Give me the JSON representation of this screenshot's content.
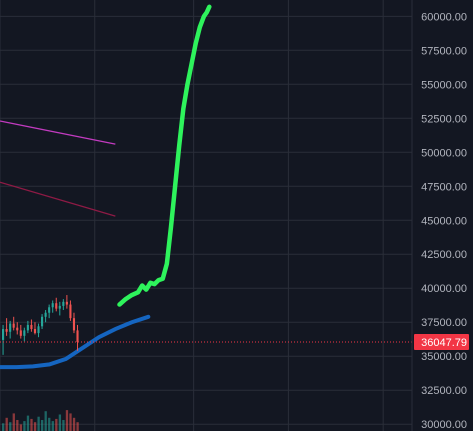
{
  "chart_data": {
    "type": "line",
    "ylim": [
      29500,
      61200
    ],
    "y_ticks": [
      "60000.00",
      "57500.00",
      "55000.00",
      "52500.00",
      "50000.00",
      "47500.00",
      "45000.00",
      "42500.00",
      "40000.00",
      "37500.00",
      "35000.00",
      "32500.00",
      "30000.00"
    ],
    "y_tick_values": [
      60000,
      57500,
      55000,
      52500,
      50000,
      47500,
      45000,
      42500,
      40000,
      37500,
      35000,
      32500,
      30000
    ],
    "current_price": {
      "label": "36047.79",
      "value": 36047.79
    },
    "colors": {
      "background": "#131722",
      "grid": "#2a2e39",
      "axis_text": "#b2b5be",
      "projection": "#2ef35c",
      "moving_average": "#1565c0",
      "trend_upper": "#c23bc0",
      "trend_lower": "#8e1a45",
      "price_line": "#f23645",
      "candle_up": "#26a69a",
      "candle_down": "#ef5350"
    },
    "series": [
      {
        "role": "projection",
        "x": [
          0.29,
          0.305,
          0.32,
          0.335,
          0.345,
          0.355,
          0.365,
          0.375,
          0.385,
          0.395,
          0.405,
          0.415,
          0.425,
          0.435,
          0.445,
          0.455,
          0.465,
          0.475,
          0.485,
          0.495,
          0.502,
          0.508
        ],
        "y": [
          38800,
          39200,
          39500,
          39700,
          40200,
          39900,
          40400,
          40300,
          40600,
          40700,
          41800,
          44500,
          47500,
          50500,
          53200,
          55000,
          56500,
          58000,
          59200,
          60000,
          60300,
          60700
        ]
      },
      {
        "role": "moving_average",
        "x": [
          0,
          0.04,
          0.08,
          0.12,
          0.16,
          0.2,
          0.24,
          0.28,
          0.32,
          0.36
        ],
        "y": [
          34200,
          34200,
          34250,
          34400,
          34800,
          35600,
          36400,
          37000,
          37500,
          37900
        ]
      },
      {
        "role": "trend_upper",
        "x": [
          0,
          0.28
        ],
        "y": [
          52300,
          50600
        ]
      },
      {
        "role": "trend_lower",
        "x": [
          0,
          0.28
        ],
        "y": [
          47800,
          45300
        ]
      }
    ],
    "candles": [
      {
        "o": 36200,
        "h": 37300,
        "l": 35100,
        "c": 37000
      },
      {
        "o": 37000,
        "h": 37800,
        "l": 36500,
        "c": 36800
      },
      {
        "o": 36800,
        "h": 37600,
        "l": 36300,
        "c": 37400
      },
      {
        "o": 37400,
        "h": 37900,
        "l": 36900,
        "c": 37100
      },
      {
        "o": 37100,
        "h": 37500,
        "l": 36600,
        "c": 36900
      },
      {
        "o": 36900,
        "h": 37300,
        "l": 36300,
        "c": 36500
      },
      {
        "o": 36500,
        "h": 37100,
        "l": 36100,
        "c": 36900
      },
      {
        "o": 36900,
        "h": 37600,
        "l": 36700,
        "c": 37300
      },
      {
        "o": 37300,
        "h": 37700,
        "l": 36800,
        "c": 37000
      },
      {
        "o": 37000,
        "h": 37500,
        "l": 36600,
        "c": 36700
      },
      {
        "o": 36700,
        "h": 37400,
        "l": 36400,
        "c": 37200
      },
      {
        "o": 37200,
        "h": 38100,
        "l": 37000,
        "c": 37900
      },
      {
        "o": 37900,
        "h": 38400,
        "l": 37500,
        "c": 38200
      },
      {
        "o": 38200,
        "h": 38800,
        "l": 37800,
        "c": 38600
      },
      {
        "o": 38600,
        "h": 39100,
        "l": 38200,
        "c": 38900
      },
      {
        "o": 38900,
        "h": 39300,
        "l": 38300,
        "c": 38500
      },
      {
        "o": 38500,
        "h": 39000,
        "l": 38000,
        "c": 38700
      },
      {
        "o": 38700,
        "h": 39200,
        "l": 38400,
        "c": 39000
      },
      {
        "o": 39000,
        "h": 39500,
        "l": 38500,
        "c": 38800
      },
      {
        "o": 38800,
        "h": 39100,
        "l": 37600,
        "c": 37800
      },
      {
        "o": 37800,
        "h": 38200,
        "l": 36700,
        "c": 36900
      },
      {
        "o": 36900,
        "h": 37300,
        "l": 35400,
        "c": 36048
      }
    ],
    "volumes": [
      0.35,
      0.6,
      0.4,
      0.8,
      0.5,
      0.3,
      0.45,
      0.7,
      0.55,
      0.4,
      0.65,
      0.5,
      0.9,
      0.6,
      0.45,
      0.55,
      0.75,
      0.5,
      0.95,
      0.8,
      0.6,
      0.4
    ]
  }
}
